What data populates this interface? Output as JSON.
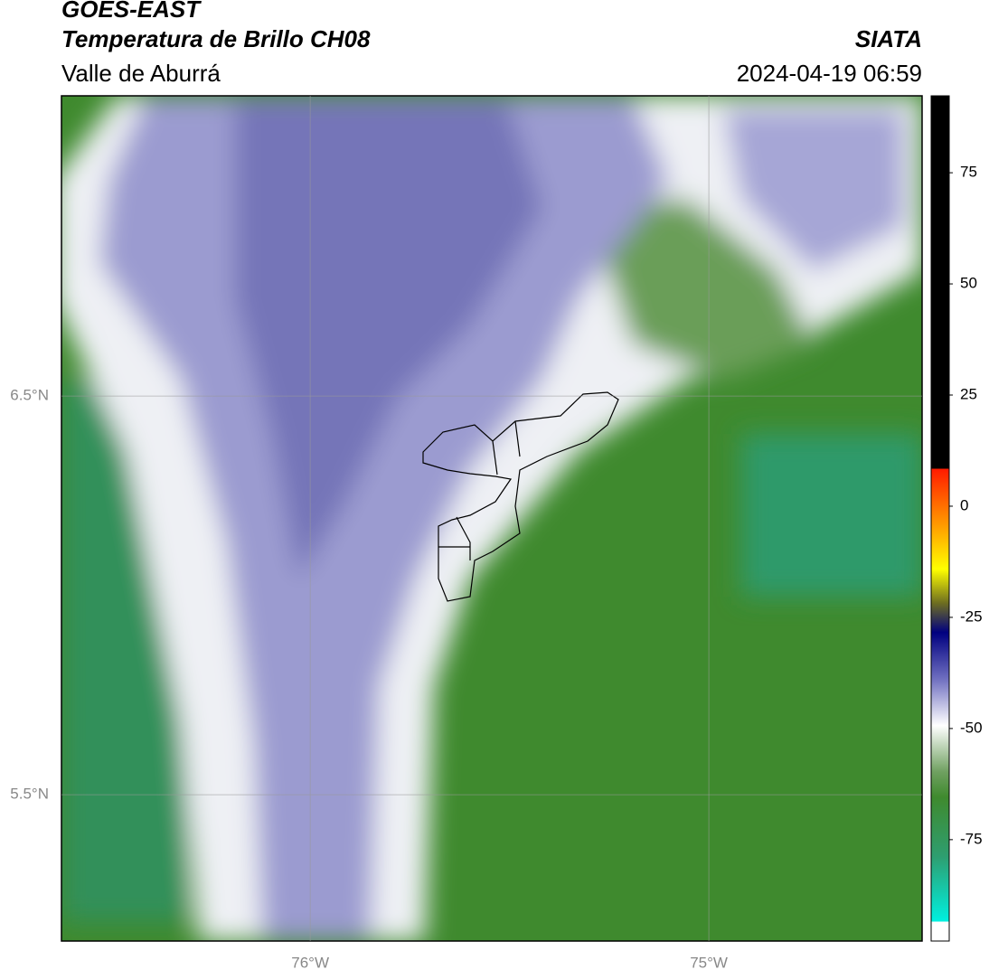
{
  "header": {
    "title": "GOES-EAST",
    "subtitle": "Temperatura de Brillo CH08",
    "region": "Valle de Aburrá",
    "source": "SIATA",
    "datetime": "2024-04-19 06:59"
  },
  "map": {
    "xlim": [
      -76.624,
      -74.465
    ],
    "ylim": [
      5.133,
      7.253
    ],
    "xticks": [
      {
        "value": -76,
        "label": "76°W"
      },
      {
        "value": -75,
        "label": "75°W"
      }
    ],
    "yticks": [
      {
        "value": 6.5,
        "label": "6.5°N"
      },
      {
        "value": 5.5,
        "label": "5.5°N"
      }
    ],
    "grid": true
  },
  "colorbar": {
    "lim": [
      -97.8,
      92.3
    ],
    "ticks": [
      75,
      50,
      25,
      0,
      -25,
      -50,
      -75
    ]
  }
}
